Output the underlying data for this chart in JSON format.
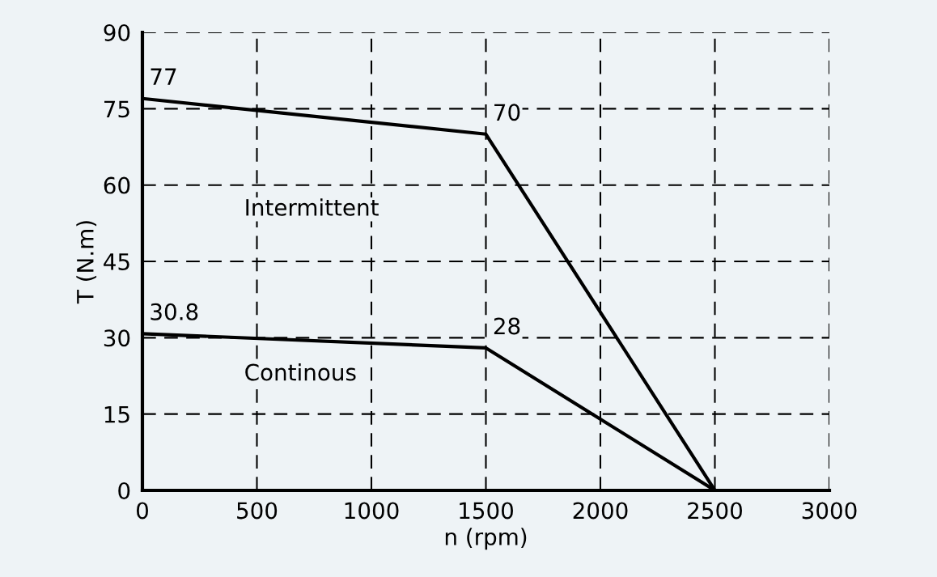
{
  "chart_data": {
    "type": "line",
    "xlabel": "n (rpm)",
    "ylabel": "T (N.m)",
    "x": [
      0,
      1500,
      2500
    ],
    "series": [
      {
        "color": "#000000",
        "values": [
          77,
          70,
          0
        ],
        "value_labels": [
          "77",
          "70",
          null
        ]
      },
      {
        "color": "#000000",
        "values": [
          30.8,
          28,
          0
        ],
        "value_labels": [
          "30.8",
          "28",
          null
        ]
      }
    ],
    "xlim": [
      0,
      3000
    ],
    "xticks": [
      0,
      500,
      1000,
      1500,
      2000,
      2500,
      3000
    ],
    "ylim": [
      0,
      90
    ],
    "yticks": [
      0,
      15,
      30,
      45,
      60,
      75,
      90
    ],
    "grid": true,
    "legend": false,
    "marker": "none",
    "line_style": "solid",
    "annotations": [
      "Intermittent",
      "Continous"
    ]
  }
}
